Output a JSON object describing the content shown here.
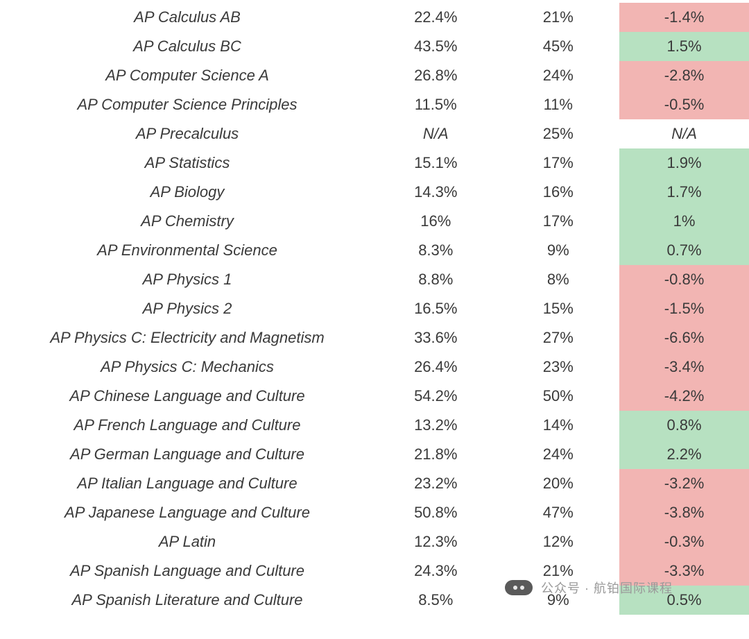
{
  "colors": {
    "positive_bg": "#b7e1c1",
    "negative_bg": "#f2b5b3",
    "neutral_bg": "#ffffff",
    "text": "#3a3a3a"
  },
  "watermark": {
    "label": "公众号 · 航铂国际课程"
  },
  "rows": [
    {
      "name": "AP Calculus AB",
      "v1": "22.4%",
      "v2": "21%",
      "change": "-1.4%",
      "dir": "neg"
    },
    {
      "name": "AP Calculus BC",
      "v1": "43.5%",
      "v2": "45%",
      "change": "1.5%",
      "dir": "pos"
    },
    {
      "name": "AP Computer Science A",
      "v1": "26.8%",
      "v2": "24%",
      "change": "-2.8%",
      "dir": "neg"
    },
    {
      "name": "AP Computer Science Principles",
      "v1": "11.5%",
      "v2": "11%",
      "change": "-0.5%",
      "dir": "neg"
    },
    {
      "name": "AP Precalculus",
      "v1": "N/A",
      "v2": "25%",
      "change": "N/A",
      "dir": "na"
    },
    {
      "name": "AP Statistics",
      "v1": "15.1%",
      "v2": "17%",
      "change": "1.9%",
      "dir": "pos"
    },
    {
      "name": "AP Biology",
      "v1": "14.3%",
      "v2": "16%",
      "change": "1.7%",
      "dir": "pos"
    },
    {
      "name": "AP Chemistry",
      "v1": "16%",
      "v2": "17%",
      "change": "1%",
      "dir": "pos"
    },
    {
      "name": "AP Environmental Science",
      "v1": "8.3%",
      "v2": "9%",
      "change": "0.7%",
      "dir": "pos"
    },
    {
      "name": "AP Physics 1",
      "v1": "8.8%",
      "v2": "8%",
      "change": "-0.8%",
      "dir": "neg"
    },
    {
      "name": "AP Physics 2",
      "v1": "16.5%",
      "v2": "15%",
      "change": "-1.5%",
      "dir": "neg"
    },
    {
      "name": "AP Physics C: Electricity and Magnetism",
      "v1": "33.6%",
      "v2": "27%",
      "change": "-6.6%",
      "dir": "neg"
    },
    {
      "name": "AP Physics C: Mechanics",
      "v1": "26.4%",
      "v2": "23%",
      "change": "-3.4%",
      "dir": "neg"
    },
    {
      "name": "AP Chinese Language and Culture",
      "v1": "54.2%",
      "v2": "50%",
      "change": "-4.2%",
      "dir": "neg"
    },
    {
      "name": "AP French Language and Culture",
      "v1": "13.2%",
      "v2": "14%",
      "change": "0.8%",
      "dir": "pos"
    },
    {
      "name": "AP German Language and Culture",
      "v1": "21.8%",
      "v2": "24%",
      "change": "2.2%",
      "dir": "pos"
    },
    {
      "name": "AP Italian Language and Culture",
      "v1": "23.2%",
      "v2": "20%",
      "change": "-3.2%",
      "dir": "neg"
    },
    {
      "name": "AP Japanese Language and Culture",
      "v1": "50.8%",
      "v2": "47%",
      "change": "-3.8%",
      "dir": "neg"
    },
    {
      "name": "AP Latin",
      "v1": "12.3%",
      "v2": "12%",
      "change": "-0.3%",
      "dir": "neg"
    },
    {
      "name": "AP Spanish Language and Culture",
      "v1": "24.3%",
      "v2": "21%",
      "change": "-3.3%",
      "dir": "neg"
    },
    {
      "name": "AP Spanish Literature and Culture",
      "v1": "8.5%",
      "v2": "9%",
      "change": "0.5%",
      "dir": "pos"
    }
  ]
}
